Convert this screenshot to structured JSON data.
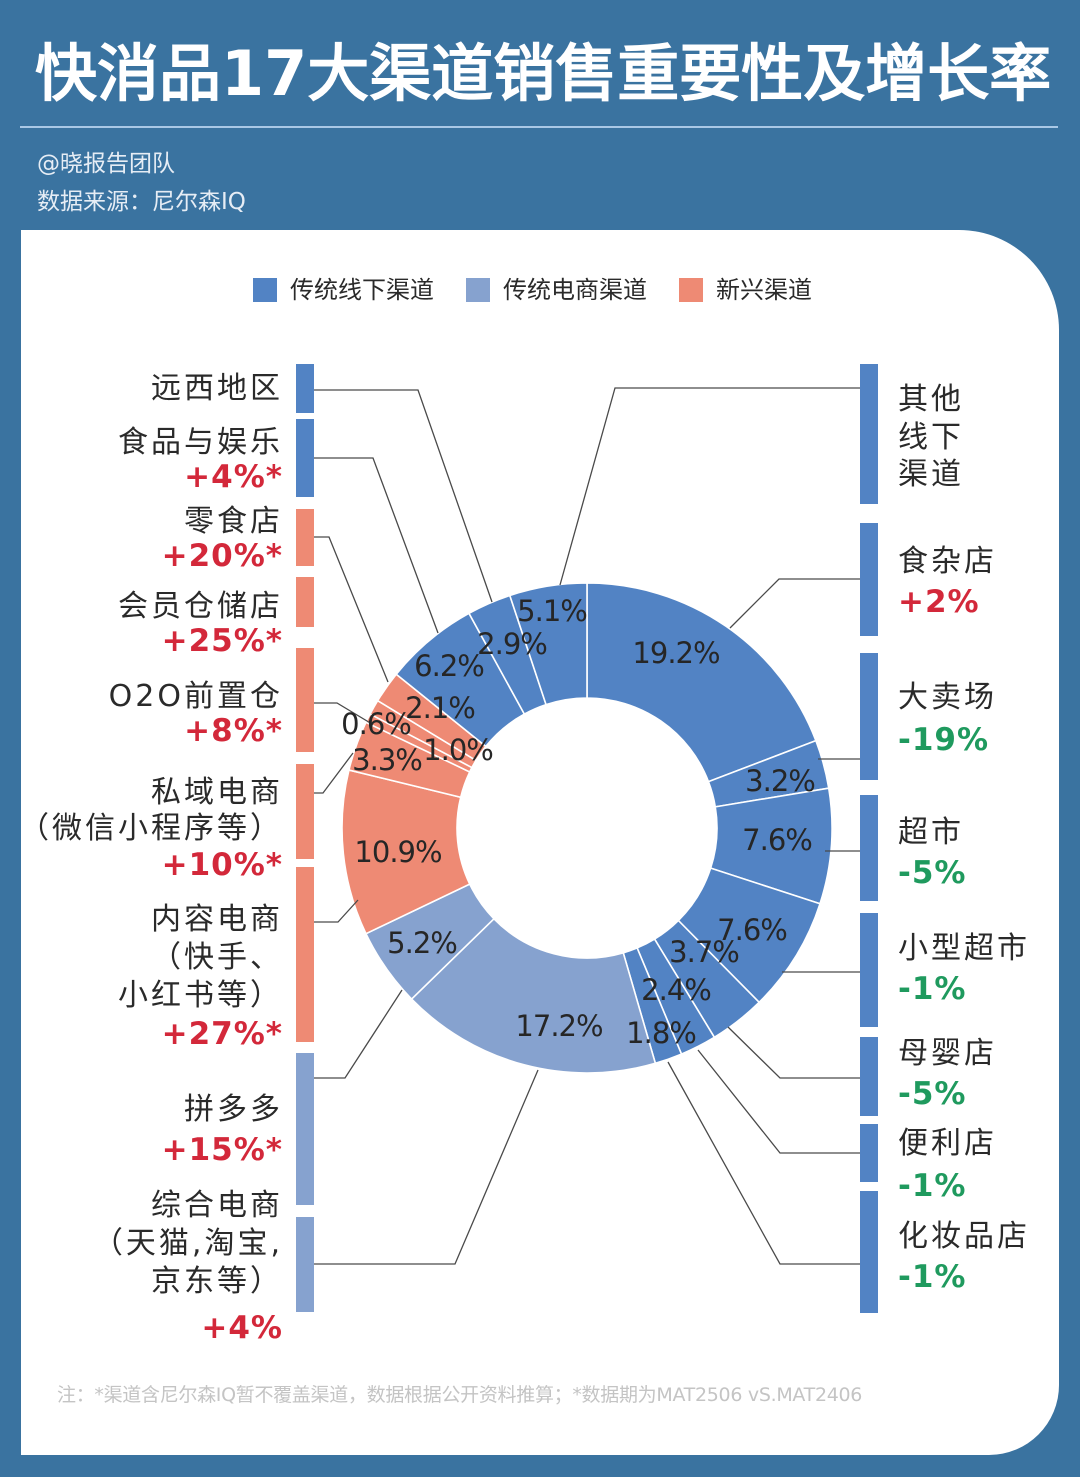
{
  "header": {
    "title": "快消品17大渠道销售重要性及增长率",
    "author": "@晓报告团队",
    "source": "数据来源：尼尔森IQ"
  },
  "colors": {
    "background": "#3a73a0",
    "offline": "#5283c4",
    "ecommerce": "#86a2cf",
    "emerging": "#ee8a74",
    "positive": "#d3283a",
    "negative": "#1f9a5e"
  },
  "legend": [
    {
      "key": "offline",
      "label": "传统线下渠道",
      "color": "#5283c4"
    },
    {
      "key": "ecommerce",
      "label": "传统电商渠道",
      "color": "#86a2cf"
    },
    {
      "key": "emerging",
      "label": "新兴渠道",
      "color": "#ee8a74"
    }
  ],
  "channels": {
    "left": [
      {
        "name_lines": [
          "远西地区"
        ],
        "growth": null
      },
      {
        "name_lines": [
          "食品与娱乐"
        ],
        "growth": "+4%*"
      },
      {
        "name_lines": [
          "零食店"
        ],
        "growth": "+20%*"
      },
      {
        "name_lines": [
          "会员仓储店"
        ],
        "growth": "+25%*"
      },
      {
        "name_lines": [
          "O2O前置仓"
        ],
        "growth": "+8%*"
      },
      {
        "name_lines": [
          "私域电商",
          "（微信小程序等）"
        ],
        "growth": "+10%*"
      },
      {
        "name_lines": [
          "内容电商",
          "（快手、",
          "小红书等）"
        ],
        "growth": "+27%*"
      },
      {
        "name_lines": [
          "拼多多"
        ],
        "growth": "+15%*"
      },
      {
        "name_lines": [
          "综合电商",
          "（天猫,淘宝,",
          "京东等）"
        ],
        "growth": "+4%"
      }
    ],
    "right": [
      {
        "name_lines": [
          "其他",
          "线下",
          "渠道"
        ],
        "growth": null
      },
      {
        "name_lines": [
          "食杂店"
        ],
        "growth": "+2%"
      },
      {
        "name_lines": [
          "大卖场"
        ],
        "growth": "-19%"
      },
      {
        "name_lines": [
          "超市"
        ],
        "growth": "-5%"
      },
      {
        "name_lines": [
          "小型超市"
        ],
        "growth": "-1%"
      },
      {
        "name_lines": [
          "母婴店"
        ],
        "growth": "-5%"
      },
      {
        "name_lines": [
          "便利店"
        ],
        "growth": "-1%"
      },
      {
        "name_lines": [
          "化妆品店"
        ],
        "growth": "-1%"
      }
    ]
  },
  "footnote": "注：*渠道含尼尔森IQ暂不覆盖渠道，数据根据公开资料推算；*数据期为MAT2506 vS.MAT2406",
  "chart_data": {
    "type": "pie",
    "variant": "donut",
    "title": "快消品17大渠道销售重要性及增长率",
    "subtitle": "数据来源：尼尔森IQ",
    "unit": "%",
    "legend": [
      "传统线下渠道",
      "传统电商渠道",
      "新兴渠道"
    ],
    "legend_position": "top",
    "start": "12 o'clock, clockwise",
    "categories": [
      "食杂店",
      "大卖场",
      "超市",
      "小型超市",
      "母婴店",
      "便利店",
      "化妆品店",
      "综合电商（天猫,淘宝,京东等）",
      "拼多多",
      "内容电商（快手、小红书等）",
      "私域电商（微信小程序等）",
      "O2O前置仓",
      "会员仓储店",
      "零食店",
      "食品与娱乐",
      "远西地区",
      "其他线下渠道"
    ],
    "values": [
      19.2,
      3.2,
      7.6,
      7.6,
      3.7,
      2.4,
      1.8,
      17.2,
      5.2,
      10.9,
      3.3,
      0.6,
      1.0,
      2.1,
      6.2,
      2.9,
      5.1
    ],
    "slices": [
      {
        "name": "食杂店",
        "value": 19.2,
        "label": "19.2%",
        "group": "offline",
        "growth": "+2%"
      },
      {
        "name": "大卖场",
        "value": 3.2,
        "label": "3.2%",
        "group": "offline",
        "growth": "-19%"
      },
      {
        "name": "超市",
        "value": 7.6,
        "label": "7.6%",
        "group": "offline",
        "growth": "-5%"
      },
      {
        "name": "小型超市",
        "value": 7.6,
        "label": "7.6%",
        "group": "offline",
        "growth": "-1%"
      },
      {
        "name": "母婴店",
        "value": 3.7,
        "label": "3.7%",
        "group": "offline",
        "growth": "-5%"
      },
      {
        "name": "便利店",
        "value": 2.4,
        "label": "2.4%",
        "group": "offline",
        "growth": "-1%"
      },
      {
        "name": "化妆品店",
        "value": 1.8,
        "label": "1.8%",
        "group": "offline",
        "growth": "-1%"
      },
      {
        "name": "综合电商（天猫,淘宝,京东等）",
        "value": 17.2,
        "label": "17.2%",
        "group": "ecommerce",
        "growth": "+4%"
      },
      {
        "name": "拼多多",
        "value": 5.2,
        "label": "5.2%",
        "group": "ecommerce",
        "growth": "+15%*"
      },
      {
        "name": "内容电商（快手、小红书等）",
        "value": 10.9,
        "label": "10.9%",
        "group": "emerging",
        "growth": "+27%*"
      },
      {
        "name": "私域电商（微信小程序等）",
        "value": 3.3,
        "label": "3.3%",
        "group": "emerging",
        "growth": "+10%*"
      },
      {
        "name": "O2O前置仓",
        "value": 0.6,
        "label": "0.6%",
        "group": "emerging",
        "growth": "+8%*"
      },
      {
        "name": "会员仓储店",
        "value": 1.0,
        "label": "1.0%",
        "group": "emerging",
        "growth": "+25%*"
      },
      {
        "name": "零食店",
        "value": 2.1,
        "label": "2.1%",
        "group": "emerging",
        "growth": "+20%*"
      },
      {
        "name": "食品与娱乐",
        "value": 6.2,
        "label": "6.2%",
        "group": "offline",
        "growth": "+4%*"
      },
      {
        "name": "远西地区",
        "value": 2.9,
        "label": "2.9%",
        "group": "offline",
        "growth": null
      },
      {
        "name": "其他线下渠道",
        "value": 5.1,
        "label": "5.1%",
        "group": "offline",
        "growth": null
      }
    ]
  }
}
